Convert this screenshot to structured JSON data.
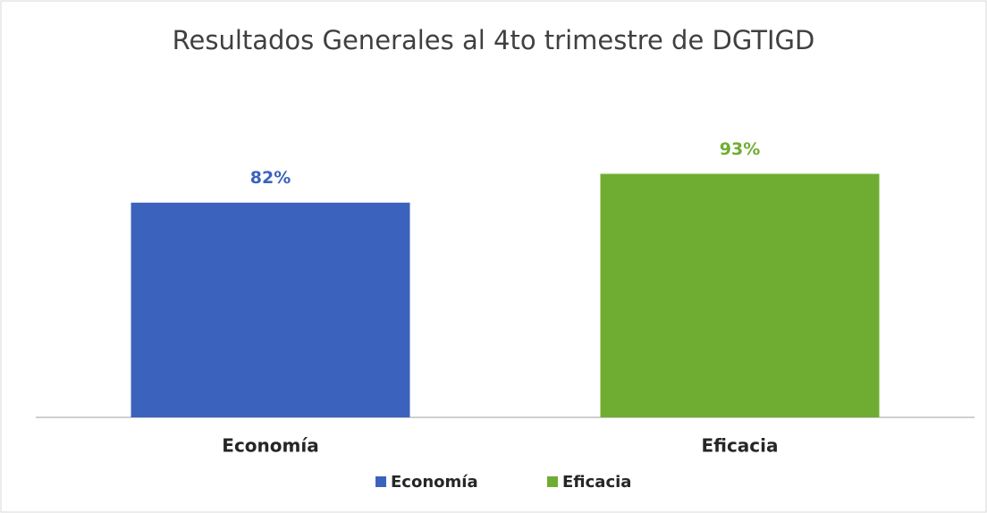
{
  "chart_data": {
    "type": "bar",
    "title": "Resultados Generales al 4to trimestre de DGTIGD",
    "categories": [
      "Economía",
      "Eficacia"
    ],
    "values": [
      82,
      93
    ],
    "value_labels": [
      "82%",
      "93%"
    ],
    "colors": [
      "#3b63be",
      "#6fad32"
    ],
    "legend": "bottom"
  }
}
